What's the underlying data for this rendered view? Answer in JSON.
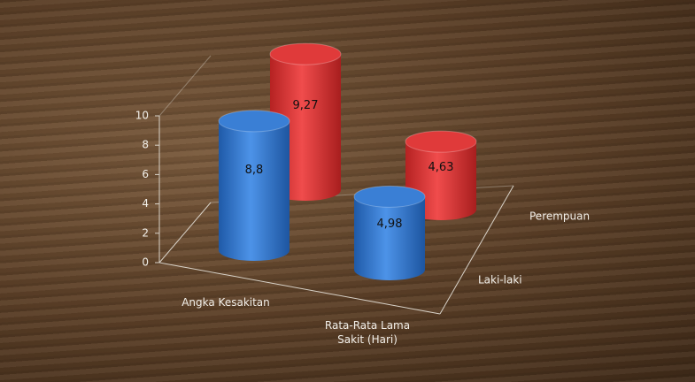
{
  "chart_data": {
    "type": "bar",
    "categories": [
      "Angka Kesakitan",
      "Rata-Rata Lama Sakit (Hari)"
    ],
    "series": [
      {
        "name": "Laki-laki",
        "color": "#3a7fd5",
        "values": [
          8.8,
          4.98
        ],
        "value_labels": [
          "8,8",
          "4,98"
        ]
      },
      {
        "name": "Perempuan",
        "color": "#e03a3a",
        "values": [
          9.27,
          4.63
        ],
        "value_labels": [
          "9,27",
          "4,63"
        ]
      }
    ],
    "ylim": [
      0,
      10
    ],
    "yticks": [
      0,
      2,
      4,
      6,
      8,
      10
    ]
  }
}
